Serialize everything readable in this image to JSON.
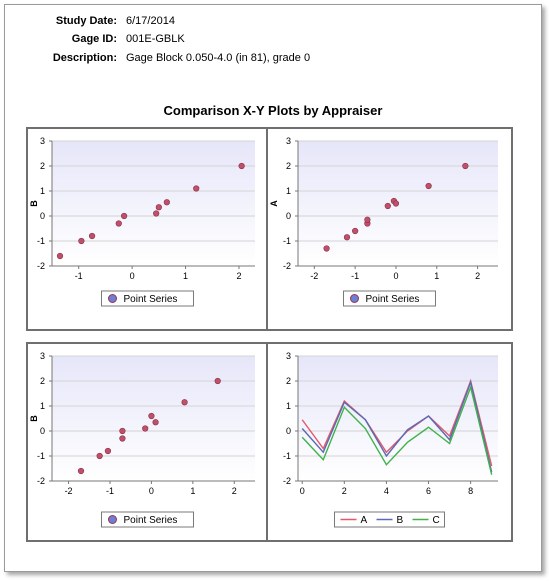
{
  "header": {
    "study_date_label": "Study Date:",
    "study_date": "6/17/2014",
    "gage_id_label": "Gage ID:",
    "gage_id": "001E-GBLK",
    "description_label": "Description:",
    "description": "Gage Block  0.050-4.0  (in 81), grade 0"
  },
  "report_title": "Comparison X-Y Plots by Appraiser",
  "colors": {
    "point_fill": "#c0506a",
    "series_A": "#e05a6a",
    "series_B": "#5a6ab4",
    "series_C": "#3fb24a",
    "plot_bg_top": "#e6e6fa",
    "plot_bg_bottom": "#ffffff"
  },
  "chart_data": [
    {
      "type": "scatter",
      "ylabel": "B",
      "legend": "Point Series",
      "legend_position": "bottom",
      "xlim": [
        -1.5,
        2.3
      ],
      "ylim": [
        -2,
        3
      ],
      "x_ticks": [
        -1,
        0,
        1,
        2
      ],
      "y_ticks": [
        -2,
        -1,
        0,
        1,
        2,
        3
      ],
      "points": [
        [
          -1.35,
          -1.6
        ],
        [
          -0.95,
          -1.0
        ],
        [
          -0.75,
          -0.8
        ],
        [
          -0.25,
          -0.3
        ],
        [
          -0.15,
          0.0
        ],
        [
          0.45,
          0.1
        ],
        [
          0.5,
          0.35
        ],
        [
          0.65,
          0.55
        ],
        [
          1.2,
          1.1
        ],
        [
          2.05,
          2.0
        ]
      ]
    },
    {
      "type": "scatter",
      "ylabel": "A",
      "legend": "Point Series",
      "legend_position": "bottom",
      "xlim": [
        -2.4,
        2.5
      ],
      "ylim": [
        -2,
        3
      ],
      "x_ticks": [
        -2,
        -1,
        0,
        1,
        2
      ],
      "y_ticks": [
        -2,
        -1,
        0,
        1,
        2,
        3
      ],
      "points": [
        [
          -1.7,
          -1.3
        ],
        [
          -1.2,
          -0.85
        ],
        [
          -1.0,
          -0.6
        ],
        [
          -0.7,
          -0.3
        ],
        [
          -0.7,
          -0.15
        ],
        [
          -0.2,
          0.4
        ],
        [
          -0.05,
          0.6
        ],
        [
          0.0,
          0.5
        ],
        [
          0.8,
          1.2
        ],
        [
          1.7,
          2.0
        ]
      ]
    },
    {
      "type": "scatter",
      "ylabel": "B",
      "legend": "Point Series",
      "legend_position": "bottom",
      "xlim": [
        -2.4,
        2.5
      ],
      "ylim": [
        -2,
        3
      ],
      "x_ticks": [
        -2,
        -1,
        0,
        1,
        2
      ],
      "y_ticks": [
        -2,
        -1,
        0,
        1,
        2,
        3
      ],
      "points": [
        [
          -1.7,
          -1.6
        ],
        [
          -1.25,
          -1.0
        ],
        [
          -1.05,
          -0.8
        ],
        [
          -0.7,
          -0.3
        ],
        [
          -0.7,
          0.0
        ],
        [
          -0.15,
          0.1
        ],
        [
          0.0,
          0.6
        ],
        [
          0.1,
          0.35
        ],
        [
          0.8,
          1.15
        ],
        [
          1.6,
          2.0
        ]
      ]
    },
    {
      "type": "line",
      "legend_position": "bottom",
      "xlim": [
        -0.2,
        9.3
      ],
      "ylim": [
        -2,
        3
      ],
      "x_ticks": [
        0,
        2,
        4,
        6,
        8
      ],
      "y_ticks": [
        -2,
        -1,
        0,
        1,
        2,
        3
      ],
      "x": [
        0,
        1,
        2,
        3,
        4,
        5,
        6,
        7,
        8,
        9
      ],
      "series": [
        {
          "name": "A",
          "values": [
            0.45,
            -0.7,
            1.2,
            0.45,
            -0.85,
            0.0,
            0.6,
            -0.2,
            2.0,
            -1.4
          ]
        },
        {
          "name": "B",
          "values": [
            0.1,
            -0.85,
            1.15,
            0.45,
            -1.0,
            0.05,
            0.6,
            -0.35,
            1.95,
            -1.65
          ]
        },
        {
          "name": "C",
          "values": [
            -0.25,
            -1.15,
            0.95,
            0.1,
            -1.35,
            -0.45,
            0.15,
            -0.5,
            1.75,
            -1.75
          ]
        }
      ]
    }
  ]
}
